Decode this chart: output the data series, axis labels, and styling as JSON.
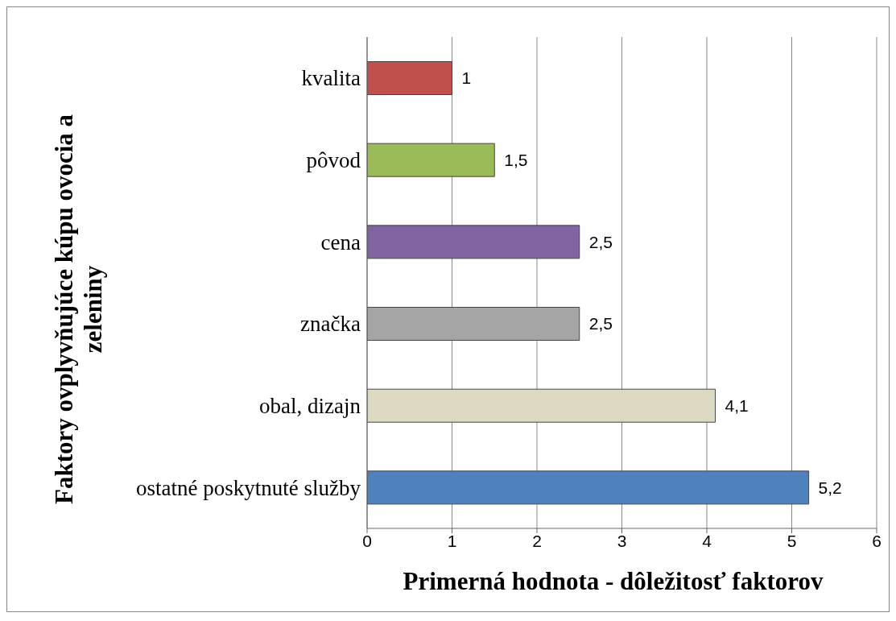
{
  "chart_data": {
    "type": "bar",
    "orientation": "horizontal",
    "xlabel": "Primerná hodnota  - dôležitosť faktorov",
    "ylabel": "Faktory ovplyvňujúce kúpu ovocia a zeleniny",
    "categories": [
      "kvalita",
      "pôvod",
      "cena",
      "značka",
      "obal, dizajn",
      "ostatné poskytnuté služby"
    ],
    "values": [
      1,
      1.5,
      2.5,
      2.5,
      4.1,
      5.2
    ],
    "colors": [
      "#c0504d",
      "#9bbb59",
      "#8064a2",
      "#a5a5a5",
      "#ddd9c3",
      "#4f81bd"
    ],
    "value_labels": [
      "1",
      "1,5",
      "2,5",
      "2,5",
      "4,1",
      "5,2"
    ],
    "xlim": [
      0,
      6
    ],
    "xticks": [
      0,
      1,
      2,
      3,
      4,
      5,
      6
    ],
    "grid": "x"
  }
}
